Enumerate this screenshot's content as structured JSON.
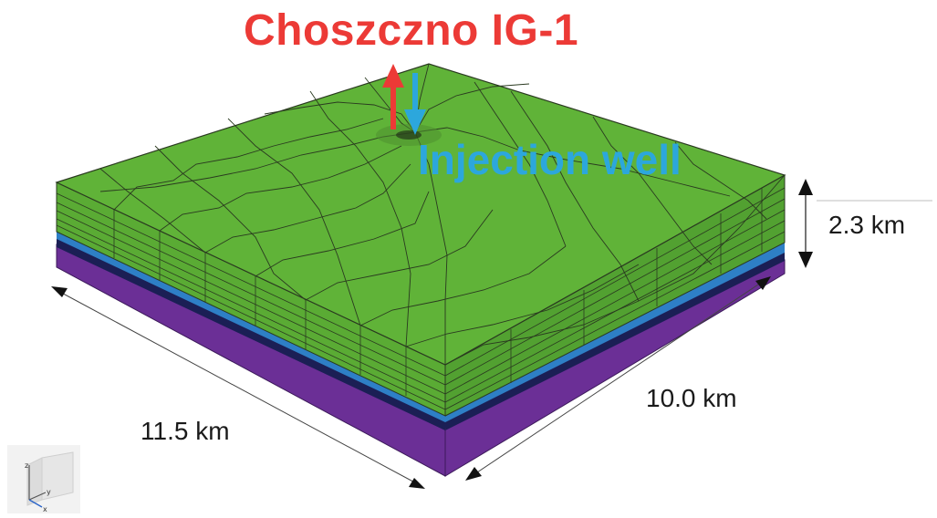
{
  "labels": {
    "well_monitor": "Choszczno IG-1",
    "well_injection": "Injection well",
    "dim_thickness": "2.3 km",
    "dim_length": "11.5 km",
    "dim_width": "10.0 km"
  },
  "axis_triad": {
    "z": "z",
    "y": "y",
    "x": "x"
  },
  "colors": {
    "grid_top": "#5fb136",
    "grid_side": "#52a131",
    "mesh_lines": "#2a3a20",
    "layer_blue": "#2e7fc6",
    "layer_dark": "#1b1f55",
    "layer_purple": "#6b2f96",
    "arrow_red": "#ec3a36",
    "arrow_blue": "#2ca7dc"
  }
}
